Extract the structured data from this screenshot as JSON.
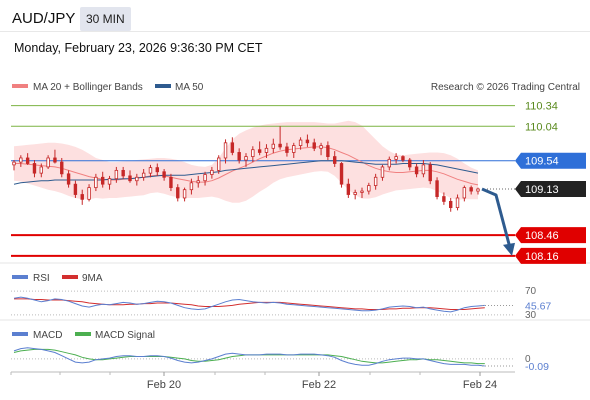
{
  "header": {
    "symbol": "AUD/JPY",
    "timeframe": "30 MIN",
    "datetime": "Monday, February 23, 2026 9:36:30 PM CET",
    "copyright": "Research © 2026 Trading Central"
  },
  "colors": {
    "ma20": "#f08080",
    "ma50": "#2e5b8f",
    "bands_fill": "#fde0e0",
    "candle": "#c62828",
    "resistance": "#7cb342",
    "support": "#e00000",
    "pivot": "#2e6fd8",
    "rsi": "#5b7fd0",
    "rsi_ma": "#d32f2f",
    "macd": "#5b7fd0",
    "macd_signal": "#4caf50"
  },
  "chart_data": [
    {
      "type": "candlestick",
      "legend": [
        "MA 20 + Bollinger Bands",
        "MA 50"
      ],
      "x_ticks": [
        "Feb 20",
        "Feb 22",
        "Feb 24"
      ],
      "ylim": [
        108.1,
        110.45
      ],
      "levels": {
        "resistance": [
          110.34,
          110.04
        ],
        "pivot": 109.54,
        "last_price": 109.13,
        "support": [
          108.46,
          108.16
        ]
      },
      "arrow": {
        "from": 109.13,
        "to": 108.16,
        "direction": "down"
      },
      "ohlc": [
        [
          109.48,
          109.55,
          109.4,
          109.52
        ],
        [
          109.52,
          109.62,
          109.45,
          109.58
        ],
        [
          109.58,
          109.65,
          109.48,
          109.5
        ],
        [
          109.5,
          109.55,
          109.3,
          109.36
        ],
        [
          109.36,
          109.5,
          109.3,
          109.45
        ],
        [
          109.45,
          109.62,
          109.42,
          109.58
        ],
        [
          109.58,
          109.7,
          109.5,
          109.52
        ],
        [
          109.52,
          109.58,
          109.3,
          109.35
        ],
        [
          109.35,
          109.4,
          109.15,
          109.2
        ],
        [
          109.2,
          109.25,
          109.0,
          109.05
        ],
        [
          109.05,
          109.12,
          108.9,
          108.98
        ],
        [
          108.98,
          109.2,
          108.95,
          109.15
        ],
        [
          109.15,
          109.35,
          109.1,
          109.3
        ],
        [
          109.3,
          109.38,
          109.15,
          109.2
        ],
        [
          109.2,
          109.32,
          109.12,
          109.28
        ],
        [
          109.28,
          109.45,
          109.22,
          109.4
        ],
        [
          109.4,
          109.45,
          109.28,
          109.32
        ],
        [
          109.32,
          109.4,
          109.22,
          109.25
        ],
        [
          109.25,
          109.35,
          109.18,
          109.3
        ],
        [
          109.3,
          109.42,
          109.25,
          109.36
        ],
        [
          109.36,
          109.48,
          109.3,
          109.44
        ],
        [
          109.44,
          109.5,
          109.32,
          109.38
        ],
        [
          109.38,
          109.42,
          109.25,
          109.3
        ],
        [
          109.3,
          109.35,
          109.1,
          109.15
        ],
        [
          109.15,
          109.2,
          108.95,
          109.0
        ],
        [
          109.0,
          109.15,
          108.95,
          109.12
        ],
        [
          109.12,
          109.28,
          109.05,
          109.22
        ],
        [
          109.22,
          109.32,
          109.15,
          109.25
        ],
        [
          109.25,
          109.38,
          109.18,
          109.34
        ],
        [
          109.34,
          109.45,
          109.28,
          109.4
        ],
        [
          109.4,
          109.62,
          109.35,
          109.58
        ],
        [
          109.58,
          109.85,
          109.5,
          109.8
        ],
        [
          109.8,
          109.88,
          109.62,
          109.66
        ],
        [
          109.66,
          109.72,
          109.5,
          109.55
        ],
        [
          109.55,
          109.65,
          109.45,
          109.6
        ],
        [
          109.6,
          109.75,
          109.52,
          109.7
        ],
        [
          109.7,
          109.82,
          109.62,
          109.66
        ],
        [
          109.66,
          109.78,
          109.58,
          109.72
        ],
        [
          109.72,
          109.86,
          109.65,
          109.78
        ],
        [
          109.78,
          110.04,
          109.7,
          109.74
        ],
        [
          109.74,
          109.8,
          109.6,
          109.66
        ],
        [
          109.66,
          109.8,
          109.58,
          109.76
        ],
        [
          109.76,
          109.88,
          109.7,
          109.84
        ],
        [
          109.84,
          109.92,
          109.74,
          109.8
        ],
        [
          109.8,
          109.86,
          109.68,
          109.72
        ],
        [
          109.72,
          109.8,
          109.62,
          109.76
        ],
        [
          109.76,
          109.82,
          109.55,
          109.6
        ],
        [
          109.6,
          109.68,
          109.45,
          109.5
        ],
        [
          109.5,
          109.52,
          109.15,
          109.2
        ],
        [
          109.2,
          109.28,
          109.0,
          109.05
        ],
        [
          109.05,
          109.12,
          108.98,
          109.08
        ],
        [
          109.08,
          109.15,
          109.0,
          109.1
        ],
        [
          109.1,
          109.22,
          109.05,
          109.18
        ],
        [
          109.18,
          109.35,
          109.12,
          109.3
        ],
        [
          109.3,
          109.48,
          109.25,
          109.45
        ],
        [
          109.45,
          109.6,
          109.4,
          109.56
        ],
        [
          109.56,
          109.65,
          109.5,
          109.6
        ],
        [
          109.6,
          109.62,
          109.52,
          109.55
        ],
        [
          109.55,
          109.58,
          109.4,
          109.45
        ],
        [
          109.45,
          109.5,
          109.3,
          109.35
        ],
        [
          109.35,
          109.55,
          109.3,
          109.48
        ],
        [
          109.48,
          109.52,
          109.2,
          109.25
        ],
        [
          109.25,
          109.3,
          108.98,
          109.02
        ],
        [
          109.02,
          109.08,
          108.9,
          108.95
        ],
        [
          108.95,
          109.0,
          108.8,
          108.86
        ],
        [
          108.86,
          109.05,
          108.82,
          109.0
        ],
        [
          109.0,
          109.18,
          108.95,
          109.15
        ],
        [
          109.15,
          109.18,
          109.05,
          109.1
        ],
        [
          109.1,
          109.15,
          109.05,
          109.13
        ]
      ],
      "ma20": [
        109.5,
        109.5,
        109.49,
        109.48,
        109.47,
        109.46,
        109.45,
        109.43,
        109.4,
        109.37,
        109.34,
        109.31,
        109.29,
        109.27,
        109.26,
        109.26,
        109.27,
        109.28,
        109.29,
        109.3,
        109.32,
        109.33,
        109.32,
        109.3,
        109.28,
        109.26,
        109.24,
        109.23,
        109.23,
        109.25,
        109.29,
        109.34,
        109.39,
        109.43,
        109.47,
        109.52,
        109.57,
        109.61,
        109.65,
        109.68,
        109.7,
        109.71,
        109.72,
        109.73,
        109.74,
        109.74,
        109.73,
        109.7,
        109.66,
        109.62,
        109.57,
        109.52,
        109.47,
        109.43,
        109.4,
        109.38,
        109.37,
        109.37,
        109.38,
        109.39,
        109.4,
        109.4,
        109.38,
        109.35,
        109.31,
        109.27,
        109.24,
        109.21,
        109.19
      ],
      "bb_upper": [
        109.75,
        109.76,
        109.77,
        109.78,
        109.79,
        109.8,
        109.8,
        109.79,
        109.77,
        109.74,
        109.7,
        109.64,
        109.58,
        109.55,
        109.52,
        109.52,
        109.53,
        109.54,
        109.55,
        109.56,
        109.57,
        109.58,
        109.58,
        109.57,
        109.55,
        109.52,
        109.48,
        109.46,
        109.45,
        109.48,
        109.58,
        109.72,
        109.85,
        109.93,
        109.98,
        110.02,
        110.05,
        110.07,
        110.08,
        110.09,
        110.1,
        110.1,
        110.1,
        110.1,
        110.1,
        110.09,
        110.08,
        110.08,
        110.1,
        110.12,
        110.1,
        110.05,
        109.95,
        109.85,
        109.75,
        109.68,
        109.63,
        109.62,
        109.63,
        109.64,
        109.65,
        109.66,
        109.66,
        109.65,
        109.62,
        109.57,
        109.5,
        109.44,
        109.4
      ],
      "bb_lower": [
        109.25,
        109.24,
        109.21,
        109.18,
        109.15,
        109.12,
        109.1,
        109.07,
        109.03,
        109.0,
        108.98,
        108.98,
        109.0,
        108.99,
        109.0,
        109.0,
        109.01,
        109.02,
        109.03,
        109.04,
        109.07,
        109.08,
        109.06,
        109.03,
        109.01,
        109.0,
        109.0,
        109.0,
        109.01,
        109.02,
        109.0,
        108.96,
        108.93,
        108.93,
        108.96,
        109.02,
        109.09,
        109.15,
        109.22,
        109.27,
        109.3,
        109.32,
        109.34,
        109.36,
        109.38,
        109.39,
        109.38,
        109.32,
        109.22,
        109.12,
        109.04,
        108.99,
        108.99,
        109.01,
        109.05,
        109.08,
        109.11,
        109.12,
        109.13,
        109.14,
        109.15,
        109.14,
        109.1,
        109.05,
        109.0,
        108.97,
        108.98,
        108.98,
        108.98
      ],
      "ma50": [
        109.2,
        109.22,
        109.23,
        109.24,
        109.25,
        109.25,
        109.26,
        109.26,
        109.26,
        109.26,
        109.26,
        109.26,
        109.26,
        109.26,
        109.27,
        109.27,
        109.28,
        109.28,
        109.29,
        109.3,
        109.31,
        109.32,
        109.33,
        109.33,
        109.33,
        109.33,
        109.34,
        109.35,
        109.36,
        109.37,
        109.38,
        109.4,
        109.41,
        109.42,
        109.43,
        109.44,
        109.45,
        109.46,
        109.47,
        109.48,
        109.49,
        109.5,
        109.51,
        109.52,
        109.53,
        109.54,
        109.54,
        109.54,
        109.54,
        109.53,
        109.52,
        109.51,
        109.5,
        109.49,
        109.49,
        109.49,
        109.49,
        109.5,
        109.5,
        109.5,
        109.5,
        109.49,
        109.48,
        109.46,
        109.44,
        109.42,
        109.4,
        109.38,
        109.36
      ]
    },
    {
      "type": "line",
      "legend": [
        "RSI",
        "9MA"
      ],
      "y_ticks": [
        70,
        30
      ],
      "ylim": [
        28,
        72
      ],
      "value_label": 45.67,
      "series": [
        {
          "name": "RSI",
          "values": [
            58,
            60,
            58,
            55,
            52,
            54,
            57,
            56,
            53,
            49,
            45,
            43,
            46,
            48,
            47,
            49,
            51,
            50,
            48,
            49,
            51,
            53,
            52,
            50,
            46,
            42,
            40,
            39,
            40,
            44,
            48,
            52,
            55,
            56,
            54,
            52,
            51,
            50,
            51,
            50,
            48,
            47,
            46,
            45,
            44,
            43,
            42,
            41,
            40,
            39,
            38,
            37,
            37,
            38,
            40,
            43,
            44,
            45,
            44,
            42,
            43,
            40,
            38,
            36,
            35,
            38,
            42,
            44,
            45,
            46
          ]
        },
        {
          "name": "9MA",
          "values": [
            57,
            57,
            57,
            56,
            56,
            55,
            55,
            55,
            54,
            53,
            52,
            50,
            49,
            48,
            47,
            47,
            47,
            48,
            48,
            49,
            49,
            50,
            50,
            50,
            49,
            48,
            47,
            45,
            44,
            44,
            44,
            45,
            46,
            48,
            49,
            50,
            51,
            51,
            51,
            51,
            50,
            49,
            48,
            47,
            46,
            45,
            44,
            43,
            42,
            41,
            40,
            40,
            39,
            39,
            39,
            40,
            40,
            41,
            41,
            42,
            42,
            42,
            41,
            40,
            39,
            39,
            39,
            40,
            41,
            42
          ]
        }
      ]
    },
    {
      "type": "line",
      "legend": [
        "MACD",
        "MACD Signal"
      ],
      "y_ticks": [
        0
      ],
      "ylim": [
        -0.14,
        0.2
      ],
      "value_label": -0.09,
      "series": [
        {
          "name": "MACD",
          "values": [
            0.1,
            0.13,
            0.14,
            0.13,
            0.12,
            0.1,
            0.08,
            0.04,
            0.0,
            -0.04,
            -0.05,
            -0.04,
            -0.01,
            0.0,
            0.01,
            0.03,
            0.04,
            0.04,
            0.03,
            0.03,
            0.04,
            0.04,
            0.03,
            0.01,
            -0.02,
            -0.04,
            -0.05,
            -0.04,
            -0.02,
            0.0,
            0.03,
            0.06,
            0.07,
            0.06,
            0.05,
            0.05,
            0.05,
            0.06,
            0.06,
            0.06,
            0.05,
            0.05,
            0.06,
            0.06,
            0.06,
            0.05,
            0.04,
            0.02,
            -0.02,
            -0.05,
            -0.07,
            -0.08,
            -0.08,
            -0.06,
            -0.03,
            -0.01,
            0.0,
            0.01,
            0.01,
            0.0,
            0.0,
            -0.02,
            -0.04,
            -0.06,
            -0.07,
            -0.07,
            -0.07,
            -0.08,
            -0.08,
            -0.09
          ]
        },
        {
          "name": "MACD Signal",
          "values": [
            0.08,
            0.1,
            0.11,
            0.12,
            0.12,
            0.12,
            0.11,
            0.09,
            0.07,
            0.05,
            0.02,
            0.0,
            -0.01,
            -0.01,
            0.0,
            0.01,
            0.02,
            0.03,
            0.03,
            0.03,
            0.03,
            0.03,
            0.03,
            0.02,
            0.01,
            0.0,
            -0.02,
            -0.03,
            -0.03,
            -0.02,
            -0.01,
            0.01,
            0.03,
            0.04,
            0.05,
            0.05,
            0.05,
            0.05,
            0.05,
            0.05,
            0.05,
            0.05,
            0.05,
            0.05,
            0.05,
            0.05,
            0.05,
            0.04,
            0.03,
            0.01,
            -0.01,
            -0.03,
            -0.04,
            -0.05,
            -0.05,
            -0.04,
            -0.03,
            -0.02,
            -0.01,
            -0.01,
            0.0,
            -0.01,
            -0.01,
            -0.02,
            -0.03,
            -0.04,
            -0.05,
            -0.05,
            -0.06,
            -0.06
          ]
        }
      ]
    }
  ]
}
